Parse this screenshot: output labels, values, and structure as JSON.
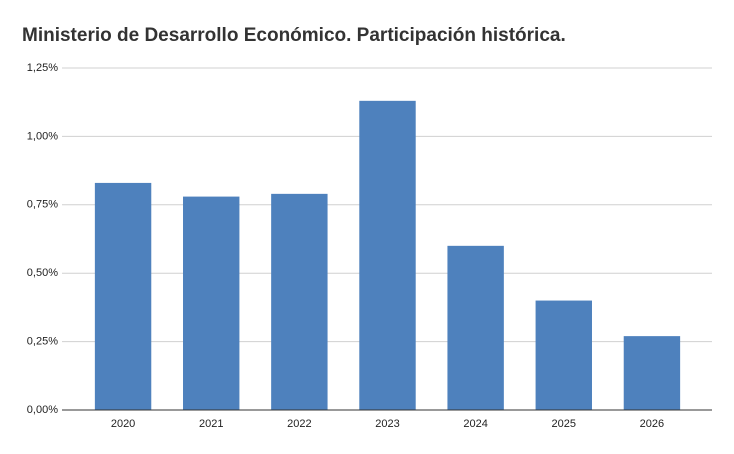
{
  "chart_data": {
    "type": "bar",
    "title": "Ministerio de Desarrollo Económico. Participación histórica.",
    "categories": [
      "2020",
      "2021",
      "2022",
      "2023",
      "2024",
      "2025",
      "2026"
    ],
    "values": [
      0.83,
      0.78,
      0.79,
      1.13,
      0.6,
      0.4,
      0.27
    ],
    "color": "#4e81bd",
    "ylim": [
      0,
      1.25
    ],
    "yticks": [
      {
        "value": 0,
        "label": "0,00%"
      },
      {
        "value": 0.25,
        "label": "0,25%"
      },
      {
        "value": 0.5,
        "label": "0,50%"
      },
      {
        "value": 0.75,
        "label": "0,75%"
      },
      {
        "value": 1,
        "label": "1,00%"
      },
      {
        "value": 1.25,
        "label": "1,25%"
      }
    ],
    "grid": true
  }
}
